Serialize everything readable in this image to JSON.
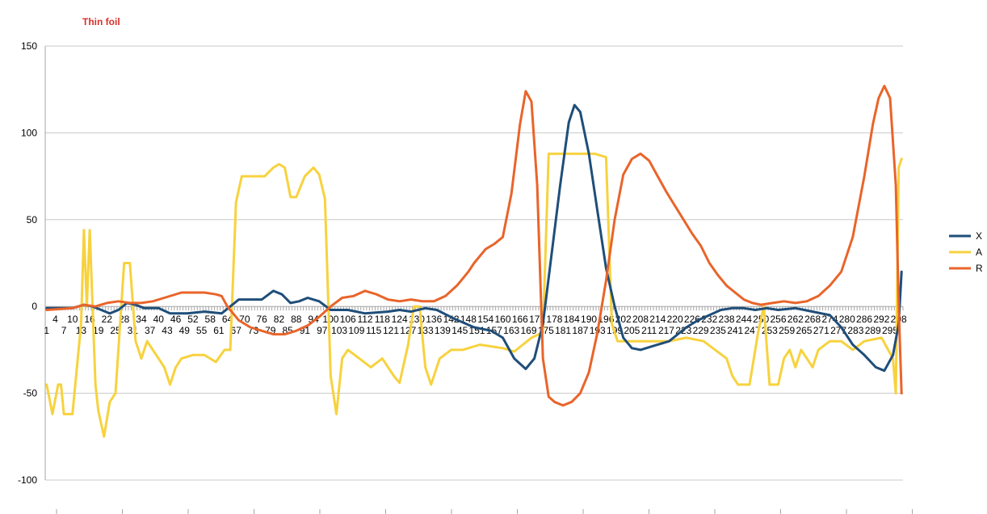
{
  "chart_data": {
    "type": "line",
    "title": "Thin foil",
    "xlabel": "",
    "ylabel": "",
    "ylim": [
      -100,
      150
    ],
    "yticks": [
      -100,
      -50,
      0,
      50,
      100,
      150
    ],
    "xlim": [
      1,
      299
    ],
    "x_label_step": 3,
    "grid": true,
    "legend_position": "right",
    "colors": {
      "title": "#D9302A",
      "grid": "#C8C8C8",
      "axis": "#A6A6A6"
    },
    "series": [
      {
        "name": "X",
        "color": "#1F4E79",
        "points": [
          [
            1,
            -1
          ],
          [
            10,
            -1
          ],
          [
            14,
            1
          ],
          [
            17,
            0
          ],
          [
            20,
            -2
          ],
          [
            23,
            -4
          ],
          [
            26,
            -2
          ],
          [
            29,
            2
          ],
          [
            32,
            1
          ],
          [
            35,
            -1
          ],
          [
            40,
            -1
          ],
          [
            44,
            -4
          ],
          [
            50,
            -4
          ],
          [
            56,
            -3
          ],
          [
            62,
            -4
          ],
          [
            65,
            0
          ],
          [
            68,
            4
          ],
          [
            76,
            4
          ],
          [
            80,
            9
          ],
          [
            83,
            7
          ],
          [
            86,
            2
          ],
          [
            89,
            3
          ],
          [
            92,
            5
          ],
          [
            96,
            3
          ],
          [
            100,
            -2
          ],
          [
            106,
            -2
          ],
          [
            112,
            -4
          ],
          [
            120,
            -3
          ],
          [
            124,
            -2
          ],
          [
            128,
            -3
          ],
          [
            133,
            -1
          ],
          [
            137,
            -2
          ],
          [
            143,
            -7
          ],
          [
            150,
            -12
          ],
          [
            156,
            -14
          ],
          [
            160,
            -18
          ],
          [
            164,
            -30
          ],
          [
            168,
            -36
          ],
          [
            171,
            -30
          ],
          [
            174,
            -10
          ],
          [
            177,
            30
          ],
          [
            180,
            70
          ],
          [
            183,
            106
          ],
          [
            185,
            116
          ],
          [
            187,
            112
          ],
          [
            190,
            88
          ],
          [
            193,
            55
          ],
          [
            196,
            22
          ],
          [
            199,
            0
          ],
          [
            202,
            -18
          ],
          [
            205,
            -24
          ],
          [
            208,
            -25
          ],
          [
            212,
            -23
          ],
          [
            218,
            -20
          ],
          [
            224,
            -12
          ],
          [
            228,
            -8
          ],
          [
            232,
            -5
          ],
          [
            236,
            -2
          ],
          [
            240,
            -1
          ],
          [
            244,
            -1
          ],
          [
            248,
            -2
          ],
          [
            252,
            -1
          ],
          [
            256,
            -2
          ],
          [
            262,
            -1
          ],
          [
            268,
            -3
          ],
          [
            274,
            -5
          ],
          [
            278,
            -12
          ],
          [
            282,
            -22
          ],
          [
            286,
            -28
          ],
          [
            290,
            -35
          ],
          [
            293,
            -37
          ],
          [
            296,
            -28
          ],
          [
            298,
            -10
          ],
          [
            299,
            20
          ]
        ]
      },
      {
        "name": "A",
        "color": "#F7D23E",
        "points": [
          [
            1,
            -45
          ],
          [
            3,
            -62
          ],
          [
            5,
            -45
          ],
          [
            6,
            -45
          ],
          [
            7,
            -62
          ],
          [
            10,
            -62
          ],
          [
            13,
            -10
          ],
          [
            14,
            44
          ],
          [
            15,
            0
          ],
          [
            16,
            44
          ],
          [
            18,
            -45
          ],
          [
            19,
            -60
          ],
          [
            21,
            -75
          ],
          [
            23,
            -55
          ],
          [
            25,
            -50
          ],
          [
            28,
            25
          ],
          [
            30,
            25
          ],
          [
            32,
            -20
          ],
          [
            34,
            -30
          ],
          [
            36,
            -20
          ],
          [
            38,
            -25
          ],
          [
            40,
            -30
          ],
          [
            42,
            -35
          ],
          [
            44,
            -45
          ],
          [
            46,
            -35
          ],
          [
            48,
            -30
          ],
          [
            52,
            -28
          ],
          [
            56,
            -28
          ],
          [
            60,
            -32
          ],
          [
            63,
            -25
          ],
          [
            65,
            -25
          ],
          [
            67,
            60
          ],
          [
            69,
            75
          ],
          [
            77,
            75
          ],
          [
            80,
            80
          ],
          [
            82,
            82
          ],
          [
            84,
            80
          ],
          [
            86,
            63
          ],
          [
            88,
            63
          ],
          [
            91,
            75
          ],
          [
            94,
            80
          ],
          [
            96,
            76
          ],
          [
            98,
            62
          ],
          [
            100,
            -40
          ],
          [
            102,
            -62
          ],
          [
            104,
            -30
          ],
          [
            106,
            -25
          ],
          [
            110,
            -30
          ],
          [
            114,
            -35
          ],
          [
            118,
            -30
          ],
          [
            122,
            -40
          ],
          [
            124,
            -44
          ],
          [
            127,
            -22
          ],
          [
            129,
            0
          ],
          [
            131,
            0
          ],
          [
            133,
            -35
          ],
          [
            135,
            -45
          ],
          [
            138,
            -30
          ],
          [
            142,
            -25
          ],
          [
            146,
            -25
          ],
          [
            152,
            -22
          ],
          [
            160,
            -24
          ],
          [
            164,
            -26
          ],
          [
            170,
            -18
          ],
          [
            174,
            -15
          ],
          [
            176,
            88
          ],
          [
            192,
            88
          ],
          [
            196,
            86
          ],
          [
            198,
            -10
          ],
          [
            200,
            -20
          ],
          [
            210,
            -20
          ],
          [
            218,
            -20
          ],
          [
            224,
            -18
          ],
          [
            230,
            -20
          ],
          [
            234,
            -25
          ],
          [
            238,
            -30
          ],
          [
            240,
            -40
          ],
          [
            242,
            -45
          ],
          [
            246,
            -45
          ],
          [
            249,
            -15
          ],
          [
            251,
            0
          ],
          [
            253,
            -45
          ],
          [
            256,
            -45
          ],
          [
            258,
            -30
          ],
          [
            260,
            -25
          ],
          [
            262,
            -35
          ],
          [
            264,
            -25
          ],
          [
            266,
            -30
          ],
          [
            268,
            -35
          ],
          [
            270,
            -25
          ],
          [
            274,
            -20
          ],
          [
            278,
            -20
          ],
          [
            282,
            -25
          ],
          [
            286,
            -20
          ],
          [
            292,
            -18
          ],
          [
            296,
            -30
          ],
          [
            297,
            -50
          ],
          [
            298,
            80
          ],
          [
            299,
            85
          ]
        ]
      },
      {
        "name": "R",
        "color": "#E9642A",
        "points": [
          [
            1,
            -2
          ],
          [
            10,
            -1
          ],
          [
            14,
            1
          ],
          [
            18,
            0
          ],
          [
            22,
            2
          ],
          [
            26,
            3
          ],
          [
            30,
            2
          ],
          [
            34,
            2
          ],
          [
            38,
            3
          ],
          [
            42,
            5
          ],
          [
            48,
            8
          ],
          [
            52,
            8
          ],
          [
            56,
            8
          ],
          [
            60,
            7
          ],
          [
            62,
            6
          ],
          [
            64,
            0
          ],
          [
            68,
            -8
          ],
          [
            72,
            -12
          ],
          [
            76,
            -14
          ],
          [
            80,
            -16
          ],
          [
            84,
            -16
          ],
          [
            88,
            -14
          ],
          [
            92,
            -11
          ],
          [
            96,
            -6
          ],
          [
            100,
            0
          ],
          [
            104,
            5
          ],
          [
            108,
            6
          ],
          [
            112,
            9
          ],
          [
            116,
            7
          ],
          [
            120,
            4
          ],
          [
            124,
            3
          ],
          [
            128,
            4
          ],
          [
            132,
            3
          ],
          [
            136,
            3
          ],
          [
            140,
            6
          ],
          [
            144,
            12
          ],
          [
            148,
            20
          ],
          [
            150,
            25
          ],
          [
            154,
            33
          ],
          [
            157,
            36
          ],
          [
            160,
            40
          ],
          [
            163,
            65
          ],
          [
            166,
            105
          ],
          [
            168,
            124
          ],
          [
            170,
            118
          ],
          [
            172,
            70
          ],
          [
            174,
            -30
          ],
          [
            176,
            -52
          ],
          [
            178,
            -55
          ],
          [
            181,
            -57
          ],
          [
            184,
            -55
          ],
          [
            187,
            -50
          ],
          [
            190,
            -38
          ],
          [
            193,
            -15
          ],
          [
            196,
            15
          ],
          [
            199,
            50
          ],
          [
            202,
            76
          ],
          [
            205,
            85
          ],
          [
            208,
            88
          ],
          [
            211,
            84
          ],
          [
            214,
            75
          ],
          [
            217,
            66
          ],
          [
            220,
            58
          ],
          [
            223,
            50
          ],
          [
            226,
            42
          ],
          [
            229,
            35
          ],
          [
            232,
            25
          ],
          [
            235,
            18
          ],
          [
            238,
            12
          ],
          [
            241,
            8
          ],
          [
            244,
            4
          ],
          [
            247,
            2
          ],
          [
            250,
            1
          ],
          [
            254,
            2
          ],
          [
            258,
            3
          ],
          [
            262,
            2
          ],
          [
            266,
            3
          ],
          [
            270,
            6
          ],
          [
            274,
            12
          ],
          [
            278,
            20
          ],
          [
            282,
            40
          ],
          [
            286,
            75
          ],
          [
            289,
            105
          ],
          [
            291,
            120
          ],
          [
            293,
            127
          ],
          [
            295,
            120
          ],
          [
            297,
            70
          ],
          [
            298,
            0
          ],
          [
            299,
            -50
          ]
        ]
      }
    ]
  }
}
